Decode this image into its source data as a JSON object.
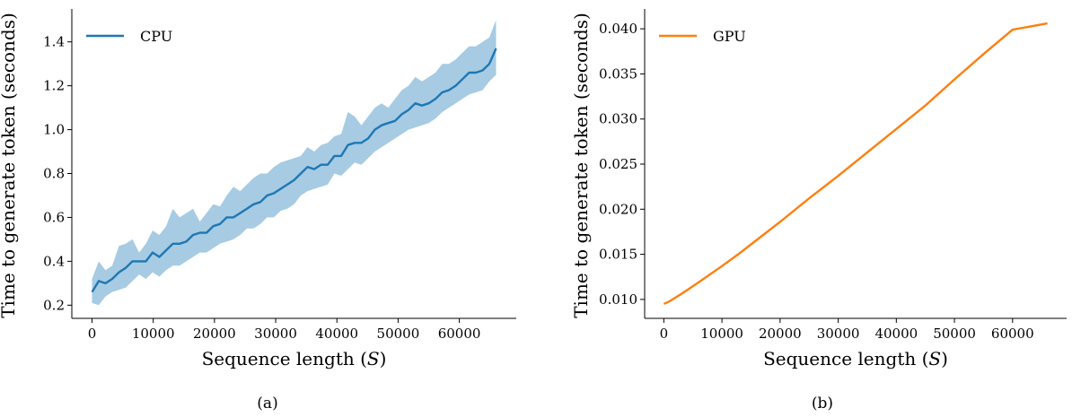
{
  "chart_data": [
    {
      "type": "line",
      "panel_label": "(a)",
      "xlabel": "Sequence length (S)",
      "ylabel": "Time to generate token (seconds)",
      "xlim": [
        -3300,
        69300
      ],
      "ylim": [
        0.14,
        1.55
      ],
      "xticks": [
        0,
        10000,
        20000,
        30000,
        40000,
        50000,
        60000
      ],
      "yticks": [
        0.2,
        0.4,
        0.6,
        0.8,
        1.0,
        1.2,
        1.4
      ],
      "ytick_labels": [
        "0.2",
        "0.4",
        "0.6",
        "0.8",
        "1.0",
        "1.2",
        "1.4"
      ],
      "grid": false,
      "legend_position": "top-left",
      "series": [
        {
          "name": "CPU",
          "color": "#1f77b4",
          "band_color": "#a6cbe3",
          "x": [
            0,
            1100,
            2200,
            3300,
            4400,
            5500,
            6600,
            7700,
            8800,
            9900,
            11000,
            12100,
            13200,
            14300,
            15400,
            16500,
            17600,
            18700,
            19800,
            20900,
            22000,
            23100,
            24200,
            25300,
            26400,
            27500,
            28600,
            29700,
            30800,
            31900,
            33000,
            34100,
            35200,
            36300,
            37400,
            38500,
            39600,
            40700,
            41800,
            42900,
            44000,
            45100,
            46200,
            47300,
            48400,
            49500,
            50600,
            51700,
            52800,
            53900,
            55000,
            56100,
            57200,
            58300,
            59400,
            60500,
            61600,
            62700,
            63800,
            64900,
            66000
          ],
          "mean": [
            0.26,
            0.31,
            0.3,
            0.32,
            0.35,
            0.37,
            0.4,
            0.4,
            0.4,
            0.44,
            0.42,
            0.45,
            0.48,
            0.48,
            0.49,
            0.52,
            0.53,
            0.53,
            0.56,
            0.57,
            0.6,
            0.6,
            0.62,
            0.64,
            0.66,
            0.67,
            0.7,
            0.71,
            0.73,
            0.75,
            0.77,
            0.8,
            0.83,
            0.82,
            0.84,
            0.84,
            0.88,
            0.88,
            0.93,
            0.94,
            0.94,
            0.96,
            1.0,
            1.02,
            1.03,
            1.04,
            1.07,
            1.09,
            1.12,
            1.11,
            1.12,
            1.14,
            1.17,
            1.18,
            1.2,
            1.23,
            1.26,
            1.26,
            1.27,
            1.3,
            1.37
          ],
          "upper": [
            0.32,
            0.4,
            0.36,
            0.38,
            0.47,
            0.48,
            0.5,
            0.44,
            0.48,
            0.54,
            0.52,
            0.56,
            0.64,
            0.6,
            0.62,
            0.64,
            0.58,
            0.62,
            0.66,
            0.65,
            0.7,
            0.74,
            0.72,
            0.75,
            0.78,
            0.8,
            0.8,
            0.83,
            0.85,
            0.86,
            0.87,
            0.88,
            0.92,
            0.9,
            0.93,
            0.94,
            0.97,
            0.98,
            1.08,
            1.06,
            1.02,
            1.06,
            1.1,
            1.12,
            1.1,
            1.14,
            1.18,
            1.2,
            1.24,
            1.22,
            1.24,
            1.26,
            1.3,
            1.3,
            1.32,
            1.35,
            1.38,
            1.38,
            1.4,
            1.42,
            1.5
          ],
          "lower": [
            0.21,
            0.2,
            0.24,
            0.26,
            0.27,
            0.28,
            0.31,
            0.34,
            0.32,
            0.35,
            0.33,
            0.36,
            0.38,
            0.38,
            0.4,
            0.42,
            0.44,
            0.44,
            0.46,
            0.48,
            0.49,
            0.5,
            0.52,
            0.55,
            0.55,
            0.57,
            0.6,
            0.6,
            0.63,
            0.64,
            0.66,
            0.7,
            0.72,
            0.73,
            0.74,
            0.75,
            0.8,
            0.79,
            0.82,
            0.85,
            0.84,
            0.87,
            0.9,
            0.92,
            0.94,
            0.96,
            0.98,
            1.0,
            1.01,
            1.02,
            1.03,
            1.05,
            1.08,
            1.1,
            1.12,
            1.14,
            1.16,
            1.17,
            1.18,
            1.22,
            1.25
          ]
        }
      ]
    },
    {
      "type": "line",
      "panel_label": "(b)",
      "xlabel": "Sequence length (S)",
      "ylabel": "Time to generate token (seconds)",
      "xlim": [
        -3300,
        69300
      ],
      "ylim": [
        0.0079,
        0.0422
      ],
      "xticks": [
        0,
        10000,
        20000,
        30000,
        40000,
        50000,
        60000
      ],
      "yticks": [
        0.01,
        0.015,
        0.02,
        0.025,
        0.03,
        0.035,
        0.04
      ],
      "ytick_labels": [
        "0.010",
        "0.015",
        "0.020",
        "0.025",
        "0.030",
        "0.035",
        "0.040"
      ],
      "grid": false,
      "legend_position": "top-left",
      "series": [
        {
          "name": "GPU",
          "color": "#ff7f0e",
          "x": [
            0,
            1000,
            3000,
            6000,
            10000,
            13000,
            16000,
            20000,
            25000,
            30000,
            35000,
            40000,
            45000,
            50000,
            55000,
            60000,
            66000
          ],
          "values": [
            0.0095,
            0.0098,
            0.0106,
            0.0119,
            0.0137,
            0.0151,
            0.0166,
            0.0186,
            0.0212,
            0.0237,
            0.0263,
            0.0289,
            0.0315,
            0.0344,
            0.0372,
            0.0399,
            0.0406
          ]
        }
      ]
    }
  ]
}
